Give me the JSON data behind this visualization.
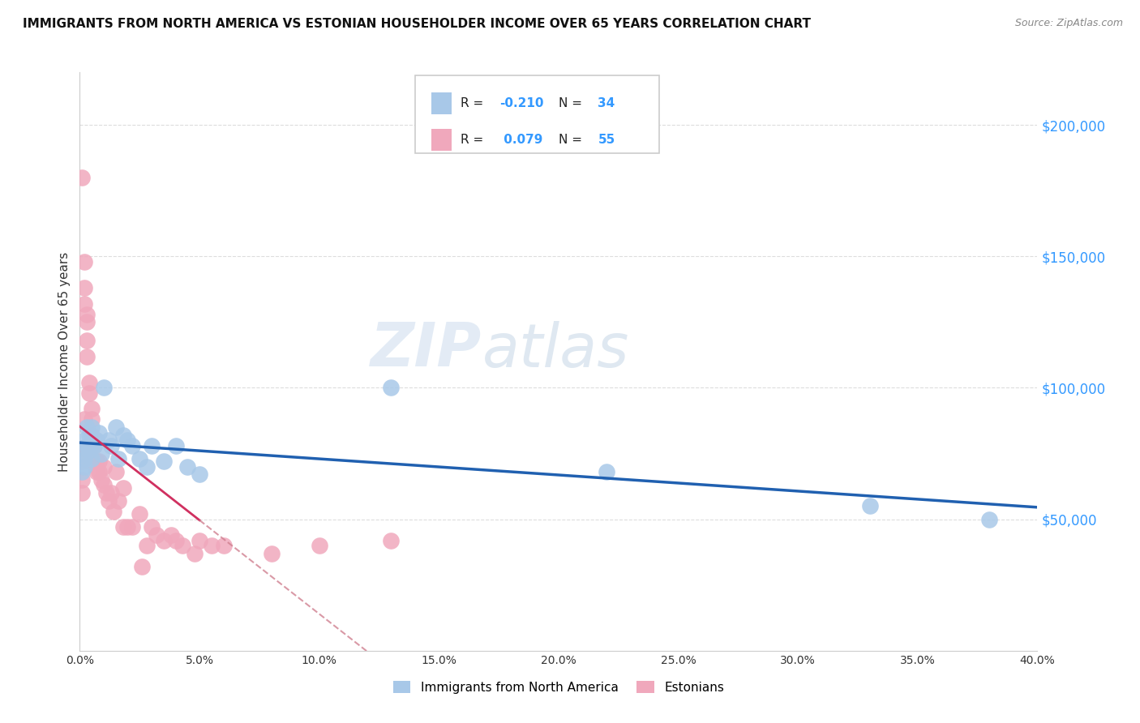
{
  "title": "IMMIGRANTS FROM NORTH AMERICA VS ESTONIAN HOUSEHOLDER INCOME OVER 65 YEARS CORRELATION CHART",
  "source": "Source: ZipAtlas.com",
  "ylabel": "Householder Income Over 65 years",
  "xlim": [
    0.0,
    0.4
  ],
  "ylim": [
    0,
    220000
  ],
  "yticks": [
    50000,
    100000,
    150000,
    200000
  ],
  "ytick_labels": [
    "$50,000",
    "$100,000",
    "$150,000",
    "$200,000"
  ],
  "xticks": [
    0.0,
    0.05,
    0.1,
    0.15,
    0.2,
    0.25,
    0.3,
    0.35,
    0.4
  ],
  "xtick_labels": [
    "0.0%",
    "5.0%",
    "10.0%",
    "15.0%",
    "20.0%",
    "25.0%",
    "30.0%",
    "35.0%",
    "40.0%"
  ],
  "watermark_zip": "ZIP",
  "watermark_atlas": "atlas",
  "blue_color": "#a8c8e8",
  "pink_color": "#f0a8bc",
  "blue_line_color": "#2060b0",
  "pink_line_color": "#d03060",
  "pink_dash_color": "#d08090",
  "bottom_legend_labels": [
    "Immigrants from North America",
    "Estonians"
  ],
  "blue_scatter_x": [
    0.001,
    0.001,
    0.002,
    0.002,
    0.002,
    0.003,
    0.003,
    0.004,
    0.004,
    0.005,
    0.005,
    0.006,
    0.007,
    0.008,
    0.009,
    0.01,
    0.012,
    0.013,
    0.015,
    0.016,
    0.018,
    0.02,
    0.022,
    0.025,
    0.028,
    0.03,
    0.035,
    0.04,
    0.045,
    0.05,
    0.13,
    0.22,
    0.33,
    0.38
  ],
  "blue_scatter_y": [
    75000,
    68000,
    80000,
    73000,
    70000,
    85000,
    78000,
    82000,
    76000,
    85000,
    73000,
    78000,
    80000,
    83000,
    75000,
    100000,
    80000,
    78000,
    85000,
    73000,
    82000,
    80000,
    78000,
    73000,
    70000,
    78000,
    72000,
    78000,
    70000,
    67000,
    100000,
    68000,
    55000,
    50000
  ],
  "pink_scatter_x": [
    0.001,
    0.001,
    0.001,
    0.001,
    0.001,
    0.002,
    0.002,
    0.002,
    0.002,
    0.003,
    0.003,
    0.003,
    0.003,
    0.004,
    0.004,
    0.004,
    0.004,
    0.005,
    0.005,
    0.005,
    0.006,
    0.006,
    0.007,
    0.007,
    0.008,
    0.008,
    0.009,
    0.01,
    0.01,
    0.011,
    0.012,
    0.013,
    0.014,
    0.015,
    0.016,
    0.018,
    0.018,
    0.02,
    0.022,
    0.025,
    0.026,
    0.028,
    0.03,
    0.032,
    0.035,
    0.038,
    0.04,
    0.043,
    0.048,
    0.05,
    0.055,
    0.06,
    0.08,
    0.1,
    0.13
  ],
  "pink_scatter_y": [
    180000,
    77000,
    72000,
    65000,
    60000,
    148000,
    138000,
    132000,
    88000,
    128000,
    125000,
    118000,
    112000,
    102000,
    98000,
    78000,
    72000,
    92000,
    88000,
    82000,
    78000,
    72000,
    72000,
    68000,
    72000,
    68000,
    65000,
    70000,
    63000,
    60000,
    57000,
    60000,
    53000,
    68000,
    57000,
    62000,
    47000,
    47000,
    47000,
    52000,
    32000,
    40000,
    47000,
    44000,
    42000,
    44000,
    42000,
    40000,
    37000,
    42000,
    40000,
    40000,
    37000,
    40000,
    42000
  ]
}
